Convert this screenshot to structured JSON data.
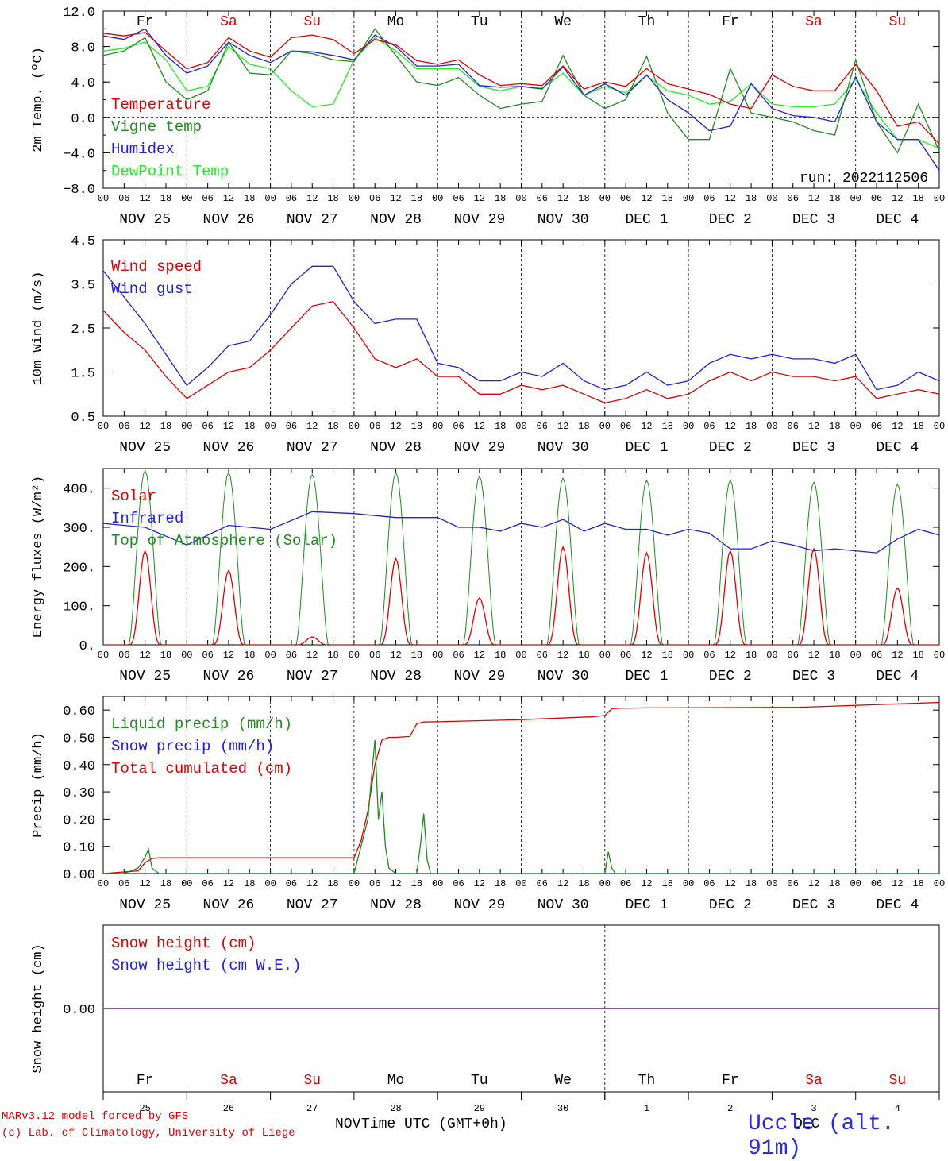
{
  "run_label": "run: 2022112506",
  "footer": {
    "model": "MARv3.12 model forced by GFS",
    "credit": "(c) Lab. of Climatology, University of Liege",
    "x_title": "Time UTC (GMT+0h)",
    "month_left": "NOV",
    "month_right": "DEC",
    "station": "Uccle (alt. 91m)"
  },
  "time_axis": {
    "days": [
      "NOV 25",
      "NOV 26",
      "NOV 27",
      "NOV 28",
      "NOV 29",
      "NOV 30",
      "DEC  1",
      "DEC  2",
      "DEC  3",
      "DEC  4"
    ],
    "weekdays": [
      "Fr",
      "Sa",
      "Su",
      "Mo",
      "Tu",
      "We",
      "Th",
      "Fr",
      "Sa",
      "Su"
    ],
    "weekday_colors": [
      "#000000",
      "#e00000",
      "#e00000",
      "#000000",
      "#000000",
      "#000000",
      "#000000",
      "#000000",
      "#e00000",
      "#e00000"
    ],
    "hour_ticks": [
      "00",
      "06",
      "12",
      "18"
    ],
    "end_tick": "00",
    "day_numbers": [
      "25",
      "26",
      "27",
      "28",
      "29",
      "30",
      "1",
      "2",
      "3",
      "4"
    ]
  },
  "chart_data": [
    {
      "type": "line",
      "ylabel": "2m Temp. (ºC)",
      "ylim": [
        -8.0,
        12.0
      ],
      "yticks": [
        "12.0",
        "8.0",
        "4.0",
        "0.0",
        "−4.0",
        "−8.0"
      ],
      "ytick_values": [
        12,
        8,
        4,
        0,
        -4,
        -8
      ],
      "zero_line": true,
      "x_unit": "hours since NOV 25 00 UTC",
      "series": [
        {
          "name": "Temperature",
          "color": "#e00000",
          "x": [
            0,
            6,
            12,
            18,
            24,
            30,
            36,
            42,
            48,
            54,
            60,
            66,
            72,
            78,
            84,
            90,
            96,
            102,
            108,
            114,
            120,
            126,
            132,
            138,
            144,
            150,
            156,
            162,
            168,
            174,
            180,
            186,
            192,
            198,
            204,
            210,
            216,
            222,
            228,
            234,
            240
          ],
          "y": [
            9.5,
            9.2,
            9.6,
            7.5,
            5.5,
            6.2,
            9.0,
            7.5,
            6.8,
            9.0,
            9.3,
            8.8,
            7.2,
            8.8,
            8.2,
            6.4,
            6.0,
            6.5,
            4.8,
            3.6,
            3.8,
            3.6,
            5.8,
            3.2,
            4.0,
            3.5,
            5.5,
            3.8,
            3.2,
            2.6,
            1.5,
            1.0,
            4.8,
            3.5,
            3.0,
            3.0,
            6.0,
            3.0,
            -1.0,
            -0.5,
            -3.0
          ]
        },
        {
          "name": "Vigne temp",
          "color": "#228b22",
          "x": [
            0,
            6,
            12,
            18,
            24,
            30,
            36,
            42,
            48,
            54,
            60,
            66,
            72,
            78,
            84,
            90,
            96,
            102,
            108,
            114,
            120,
            126,
            132,
            138,
            144,
            150,
            156,
            162,
            168,
            174,
            180,
            186,
            192,
            198,
            204,
            210,
            216,
            222,
            228,
            234,
            240
          ],
          "y": [
            7.0,
            7.5,
            9.0,
            4.0,
            2.0,
            3.0,
            8.5,
            5.0,
            4.8,
            7.5,
            7.2,
            6.5,
            6.3,
            10.0,
            7.0,
            4.0,
            3.6,
            4.5,
            2.5,
            1.0,
            1.5,
            1.8,
            7.0,
            2.5,
            1.0,
            2.0,
            6.9,
            0.5,
            -2.5,
            -2.5,
            5.5,
            0.5,
            0.0,
            -0.5,
            -1.5,
            -2.0,
            6.5,
            -0.5,
            -4.0,
            1.5,
            -3.8
          ]
        },
        {
          "name": "Humidex",
          "color": "#2020e0",
          "x": [
            0,
            6,
            12,
            18,
            24,
            30,
            36,
            42,
            48,
            54,
            60,
            66,
            72,
            78,
            84,
            90,
            96,
            102,
            108,
            114,
            120,
            126,
            132,
            138,
            144,
            150,
            156,
            162,
            168,
            174,
            180,
            186,
            192,
            198,
            204,
            210,
            216,
            222,
            228,
            234,
            240
          ],
          "y": [
            9.2,
            8.8,
            10.0,
            7.0,
            5.0,
            5.8,
            8.5,
            7.0,
            6.2,
            7.5,
            7.4,
            7.0,
            6.5,
            9.3,
            8.0,
            5.8,
            5.8,
            6.0,
            3.6,
            3.4,
            3.5,
            3.2,
            5.7,
            2.5,
            3.8,
            2.5,
            4.8,
            2.0,
            0.5,
            -1.5,
            -1.0,
            3.8,
            1.0,
            0.2,
            0.0,
            -0.5,
            4.6,
            -0.5,
            -2.5,
            -2.5,
            -6.0
          ]
        },
        {
          "name": "DewPoint Temp",
          "color": "#22ee22",
          "x": [
            0,
            6,
            12,
            18,
            24,
            30,
            36,
            42,
            48,
            54,
            60,
            66,
            72,
            78,
            84,
            90,
            96,
            102,
            108,
            114,
            120,
            126,
            132,
            138,
            144,
            150,
            156,
            162,
            168,
            174,
            180,
            186,
            192,
            198,
            204,
            210,
            216,
            222,
            228,
            234,
            240
          ],
          "y": [
            7.5,
            7.8,
            8.5,
            6.5,
            3.0,
            3.5,
            8.0,
            6.0,
            5.5,
            3.0,
            1.2,
            1.5,
            6.5,
            9.0,
            7.5,
            5.5,
            5.5,
            5.5,
            3.5,
            3.0,
            3.5,
            3.3,
            5.0,
            2.5,
            3.5,
            2.8,
            4.7,
            3.0,
            2.5,
            1.5,
            1.8,
            3.8,
            1.5,
            1.2,
            1.2,
            1.5,
            4.3,
            0.5,
            -2.5,
            -2.5,
            -3.5
          ]
        }
      ]
    },
    {
      "type": "line",
      "ylabel": "10m Wind (m/s)",
      "ylim": [
        0.5,
        4.5
      ],
      "yticks": [
        "4.5",
        "3.5",
        "2.5",
        "1.5",
        "0.5"
      ],
      "ytick_values": [
        4.5,
        3.5,
        2.5,
        1.5,
        0.5
      ],
      "x_unit": "hours since NOV 25 00 UTC",
      "series": [
        {
          "name": "Wind speed",
          "color": "#e00000",
          "x": [
            0,
            6,
            12,
            18,
            24,
            30,
            36,
            42,
            48,
            54,
            60,
            66,
            72,
            78,
            84,
            90,
            96,
            102,
            108,
            114,
            120,
            126,
            132,
            138,
            144,
            150,
            156,
            162,
            168,
            174,
            180,
            186,
            192,
            198,
            204,
            210,
            216,
            222,
            228,
            234,
            240
          ],
          "y": [
            2.9,
            2.4,
            2.0,
            1.4,
            0.9,
            1.2,
            1.5,
            1.6,
            2.0,
            2.5,
            3.0,
            3.1,
            2.5,
            1.8,
            1.6,
            1.8,
            1.4,
            1.4,
            1.0,
            1.0,
            1.2,
            1.1,
            1.2,
            1.0,
            0.8,
            0.9,
            1.1,
            0.9,
            1.0,
            1.3,
            1.5,
            1.3,
            1.5,
            1.4,
            1.4,
            1.3,
            1.4,
            0.9,
            1.0,
            1.1,
            1.0
          ]
        },
        {
          "name": "Wind gust",
          "color": "#2020e0",
          "x": [
            0,
            6,
            12,
            18,
            24,
            30,
            36,
            42,
            48,
            54,
            60,
            66,
            72,
            78,
            84,
            90,
            96,
            102,
            108,
            114,
            120,
            126,
            132,
            138,
            144,
            150,
            156,
            162,
            168,
            174,
            180,
            186,
            192,
            198,
            204,
            210,
            216,
            222,
            228,
            234,
            240
          ],
          "y": [
            3.8,
            3.2,
            2.6,
            1.9,
            1.2,
            1.6,
            2.1,
            2.2,
            2.8,
            3.5,
            3.9,
            3.9,
            3.1,
            2.6,
            2.7,
            2.7,
            1.7,
            1.6,
            1.3,
            1.3,
            1.5,
            1.4,
            1.7,
            1.3,
            1.1,
            1.2,
            1.5,
            1.2,
            1.3,
            1.7,
            1.9,
            1.8,
            1.9,
            1.8,
            1.8,
            1.7,
            1.9,
            1.1,
            1.2,
            1.5,
            1.3
          ]
        }
      ]
    },
    {
      "type": "line",
      "ylabel": "Energy fluxes (W/m²)",
      "ylim": [
        0,
        450
      ],
      "yticks": [
        "400.",
        "300.",
        "200.",
        "100.",
        "0."
      ],
      "ytick_values": [
        400,
        300,
        200,
        100,
        0
      ],
      "x_unit": "hours since NOV 25 00 UTC",
      "solar_peaks": [
        240,
        190,
        20,
        220,
        120,
        250,
        235,
        240,
        245,
        145
      ],
      "toa_peaks": [
        445,
        440,
        435,
        440,
        430,
        425,
        420,
        420,
        415,
        410
      ],
      "series": [
        {
          "name": "Solar",
          "color": "#e00000"
        },
        {
          "name": "Infrared",
          "color": "#2020e0",
          "x": [
            0,
            12,
            24,
            36,
            48,
            60,
            72,
            84,
            96,
            102,
            108,
            114,
            120,
            126,
            132,
            138,
            144,
            150,
            156,
            162,
            168,
            174,
            180,
            186,
            192,
            198,
            204,
            210,
            216,
            222,
            228,
            234,
            240
          ],
          "y": [
            310,
            300,
            255,
            305,
            295,
            340,
            335,
            325,
            325,
            300,
            300,
            290,
            310,
            300,
            320,
            290,
            310,
            295,
            295,
            280,
            295,
            285,
            245,
            245,
            265,
            255,
            240,
            245,
            240,
            235,
            270,
            295,
            280
          ]
        },
        {
          "name": "Top of Atmosphere (Solar)",
          "color": "#228b22"
        }
      ]
    },
    {
      "type": "line",
      "ylabel": "Precip (mm/h)",
      "ylim": [
        0,
        0.65
      ],
      "yticks": [
        "0.60",
        "0.50",
        "0.40",
        "0.30",
        "0.20",
        "0.10",
        "0.00"
      ],
      "ytick_values": [
        0.6,
        0.5,
        0.4,
        0.3,
        0.2,
        0.1,
        0.0
      ],
      "x_unit": "hours since NOV 25 00 UTC",
      "series": [
        {
          "name": "Liquid precip (mm/h)",
          "color": "#228b22",
          "x": [
            0,
            6,
            10,
            12,
            13,
            14,
            16,
            72,
            74,
            76,
            77,
            78,
            79,
            80,
            81,
            82,
            84,
            90,
            91,
            92,
            93,
            94,
            96,
            144,
            145,
            146,
            147,
            148,
            240
          ],
          "y": [
            0,
            0,
            0.02,
            0.06,
            0.09,
            0.02,
            0,
            0,
            0.1,
            0.2,
            0.35,
            0.49,
            0.2,
            0.3,
            0.1,
            0.02,
            0,
            0,
            0.1,
            0.22,
            0.05,
            0,
            0,
            0,
            0.08,
            0.02,
            0,
            0,
            0
          ]
        },
        {
          "name": "Snow precip (mm/h)",
          "color": "#2020e0",
          "x": [
            0,
            240
          ],
          "y": [
            0,
            0
          ]
        },
        {
          "name": "Total cumulated (cm)",
          "color": "#e00000",
          "x": [
            0,
            10,
            12,
            14,
            16,
            72,
            74,
            76,
            78,
            80,
            82,
            84,
            88,
            90,
            92,
            96,
            120,
            140,
            144,
            146,
            148,
            156,
            200,
            240
          ],
          "y": [
            0,
            0.01,
            0.04,
            0.055,
            0.058,
            0.058,
            0.12,
            0.23,
            0.4,
            0.49,
            0.5,
            0.5,
            0.503,
            0.55,
            0.556,
            0.557,
            0.565,
            0.575,
            0.58,
            0.605,
            0.607,
            0.608,
            0.61,
            0.628
          ]
        }
      ]
    },
    {
      "type": "line",
      "ylabel": "Snow height (cm)",
      "ylim": [
        -1,
        1
      ],
      "yticks": [
        "0.00"
      ],
      "ytick_values": [
        0
      ],
      "x_unit": "hours since NOV 25 00 UTC",
      "series": [
        {
          "name": "Snow height (cm)",
          "color": "#e00000",
          "x": [
            0,
            240
          ],
          "y": [
            0,
            0
          ]
        },
        {
          "name": "Snow height (cm W.E.)",
          "color": "#2020e0",
          "x": [
            0,
            240
          ],
          "y": [
            0,
            0
          ]
        }
      ]
    }
  ]
}
